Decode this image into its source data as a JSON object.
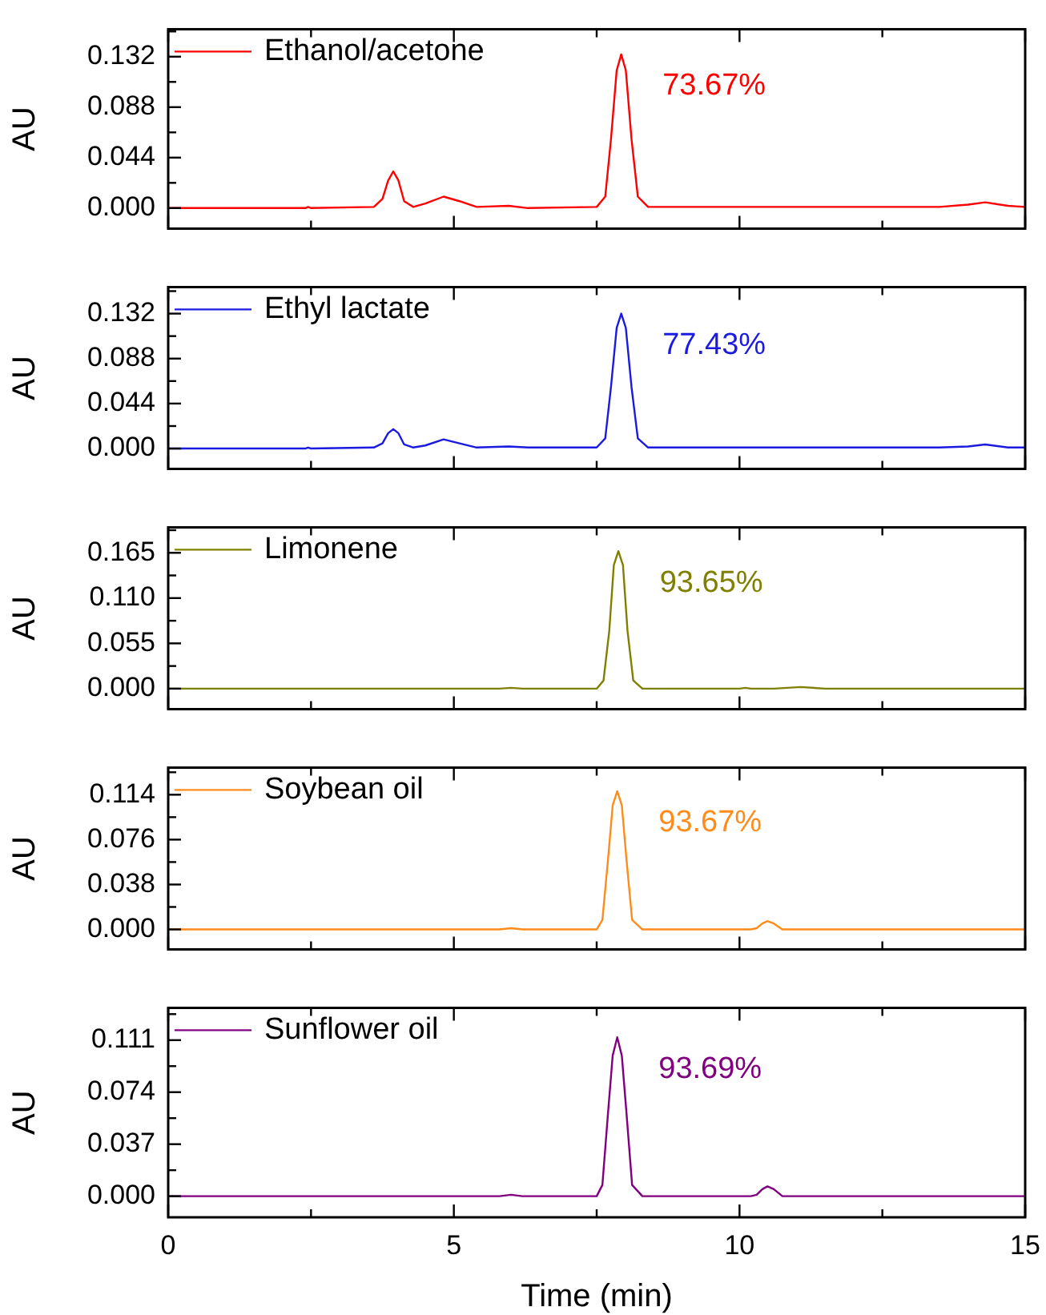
{
  "chart_data": [
    {
      "type": "line",
      "ylabel": "AU",
      "xlim": [
        0,
        15
      ],
      "xticks": [
        0,
        {
          "value": 2.5,
          "label": null
        },
        5,
        {
          "value": 7.5,
          "label": null
        },
        10,
        {
          "value": 12.5,
          "label": null
        },
        15
      ],
      "ylim": [
        -0.018,
        0.156
      ],
      "yticks": [
        {
          "value": 0,
          "label": "0.000"
        },
        {
          "value": 0.022,
          "label": null
        },
        0.044,
        {
          "value": 0.066,
          "label": null
        },
        0.088,
        {
          "value": 0.11,
          "label": null
        },
        0.132,
        {
          "value": 0.154,
          "label": null
        }
      ],
      "tick_labels": "y",
      "legend": "top left",
      "annotations": [
        "73.67%"
      ],
      "series": [
        {
          "name": "Ethanol/acetone",
          "color": "#ff0000",
          "x": [
            0,
            2.4,
            2.45,
            2.5,
            3.6,
            3.75,
            3.85,
            3.94,
            4.03,
            4.13,
            4.29,
            4.5,
            4.82,
            5.1,
            5.4,
            5.96,
            6.3,
            7.5,
            7.65,
            7.75,
            7.85,
            7.93,
            8.01,
            8.11,
            8.22,
            8.4,
            13.5,
            14.0,
            14.3,
            14.7,
            15
          ],
          "values": [
            0,
            0,
            0.001,
            0,
            0.001,
            0.008,
            0.024,
            0.032,
            0.024,
            0.006,
            0.001,
            0.004,
            0.01,
            0.006,
            0.001,
            0.002,
            0,
            0.001,
            0.01,
            0.06,
            0.12,
            0.134,
            0.12,
            0.06,
            0.01,
            0.001,
            0.001,
            0.003,
            0.005,
            0.002,
            0.001
          ]
        }
      ]
    },
    {
      "type": "line",
      "ylabel": "AU",
      "xlim": [
        0,
        15
      ],
      "xticks": [
        0,
        {
          "value": 2.5,
          "label": null
        },
        5,
        {
          "value": 7.5,
          "label": null
        },
        10,
        {
          "value": 12.5,
          "label": null
        },
        15
      ],
      "ylim": [
        -0.02,
        0.158
      ],
      "yticks": [
        {
          "value": 0,
          "label": "0.000"
        },
        {
          "value": 0.022,
          "label": null
        },
        0.044,
        {
          "value": 0.066,
          "label": null
        },
        0.088,
        {
          "value": 0.11,
          "label": null
        },
        0.132,
        {
          "value": 0.154,
          "label": null
        }
      ],
      "tick_labels": "y",
      "legend": "top left",
      "annotations": [
        "77.43%"
      ],
      "series": [
        {
          "name": "Ethyl lactate",
          "color": "#1a1ae0",
          "x": [
            0,
            2.4,
            2.45,
            2.5,
            3.6,
            3.75,
            3.85,
            3.94,
            4.03,
            4.13,
            4.29,
            4.5,
            4.82,
            5.1,
            5.4,
            5.96,
            6.3,
            7.5,
            7.65,
            7.75,
            7.85,
            7.93,
            8.01,
            8.11,
            8.22,
            8.4,
            13.5,
            14.0,
            14.3,
            14.7,
            15
          ],
          "values": [
            0,
            0,
            0.001,
            0,
            0.001,
            0.005,
            0.015,
            0.019,
            0.015,
            0.004,
            0.001,
            0.003,
            0.009,
            0.005,
            0.001,
            0.002,
            0.001,
            0.001,
            0.01,
            0.06,
            0.118,
            0.132,
            0.118,
            0.06,
            0.01,
            0.001,
            0.001,
            0.002,
            0.004,
            0.001,
            0.001
          ]
        }
      ]
    },
    {
      "type": "line",
      "ylabel": "AU",
      "xlim": [
        0,
        15
      ],
      "xticks": [
        0,
        {
          "value": 2.5,
          "label": null
        },
        5,
        {
          "value": 7.5,
          "label": null
        },
        10,
        {
          "value": 12.5,
          "label": null
        },
        15
      ],
      "ylim": [
        -0.025,
        0.196
      ],
      "yticks": [
        {
          "value": 0,
          "label": "0.000"
        },
        {
          "value": 0.0275,
          "label": null
        },
        0.055,
        {
          "value": 0.0825,
          "label": null
        },
        {
          "value": 0.11,
          "label": "0.110"
        },
        {
          "value": 0.1375,
          "label": null
        },
        0.165,
        {
          "value": 0.1925,
          "label": null
        }
      ],
      "tick_labels": "y",
      "legend": "top left",
      "annotations": [
        "93.65%"
      ],
      "series": [
        {
          "name": "Limonene",
          "color": "#808000",
          "x": [
            0,
            5.8,
            6.0,
            6.2,
            7.5,
            7.62,
            7.72,
            7.8,
            7.88,
            7.96,
            8.04,
            8.14,
            8.3,
            10.0,
            10.1,
            10.2,
            10.6,
            11.07,
            11.5,
            15
          ],
          "values": [
            0,
            0,
            0.001,
            0,
            0,
            0.01,
            0.07,
            0.15,
            0.167,
            0.15,
            0.07,
            0.01,
            0,
            0,
            0.001,
            0,
            0,
            0.002,
            0,
            0
          ]
        }
      ]
    },
    {
      "type": "line",
      "ylabel": "AU",
      "xlim": [
        0,
        15
      ],
      "xticks": [
        0,
        {
          "value": 2.5,
          "label": null
        },
        5,
        {
          "value": 7.5,
          "label": null
        },
        10,
        {
          "value": 12.5,
          "label": null
        },
        15
      ],
      "ylim": [
        -0.017,
        0.137
      ],
      "yticks": [
        {
          "value": 0,
          "label": "0.000"
        },
        {
          "value": 0.019,
          "label": null
        },
        0.038,
        {
          "value": 0.057,
          "label": null
        },
        0.076,
        {
          "value": 0.095,
          "label": null
        },
        0.114,
        {
          "value": 0.133,
          "label": null
        }
      ],
      "tick_labels": "y",
      "legend": "top left",
      "annotations": [
        "93.67%"
      ],
      "series": [
        {
          "name": "Soybean oil",
          "color": "#ff8c1a",
          "x": [
            0,
            5.8,
            6.0,
            6.2,
            7.5,
            7.6,
            7.7,
            7.78,
            7.86,
            7.94,
            8.02,
            8.12,
            8.3,
            10.2,
            10.3,
            10.4,
            10.49,
            10.6,
            10.75,
            15
          ],
          "values": [
            0,
            0,
            0.001,
            0,
            0,
            0.008,
            0.06,
            0.105,
            0.117,
            0.105,
            0.06,
            0.008,
            0,
            0,
            0.001,
            0.005,
            0.007,
            0.005,
            0,
            0
          ]
        }
      ]
    },
    {
      "type": "line",
      "xlabel": "Time (min)",
      "ylabel": "AU",
      "xlim": [
        0,
        15
      ],
      "xticks": [
        0,
        {
          "value": 2.5,
          "label": null
        },
        5,
        {
          "value": 7.5,
          "label": null
        },
        10,
        {
          "value": 12.5,
          "label": null
        },
        15
      ],
      "ylim": [
        -0.015,
        0.134
      ],
      "yticks": [
        {
          "value": 0,
          "label": "0.000"
        },
        {
          "value": 0.0185,
          "label": null
        },
        0.037,
        {
          "value": 0.0555,
          "label": null
        },
        0.074,
        {
          "value": 0.0925,
          "label": null
        },
        0.111,
        {
          "value": 0.1295,
          "label": null
        }
      ],
      "legend": "top left",
      "annotations": [
        "93.69%"
      ],
      "series": [
        {
          "name": "Sunflower oil",
          "color": "#800080",
          "x": [
            0,
            5.8,
            6.0,
            6.2,
            7.5,
            7.6,
            7.7,
            7.78,
            7.86,
            7.94,
            8.02,
            8.12,
            8.3,
            10.2,
            10.3,
            10.4,
            10.49,
            10.6,
            10.75,
            15
          ],
          "values": [
            0,
            0,
            0.001,
            0,
            0,
            0.008,
            0.06,
            0.1,
            0.113,
            0.1,
            0.06,
            0.008,
            0,
            0,
            0.001,
            0.005,
            0.007,
            0.005,
            0,
            0
          ]
        }
      ]
    }
  ]
}
